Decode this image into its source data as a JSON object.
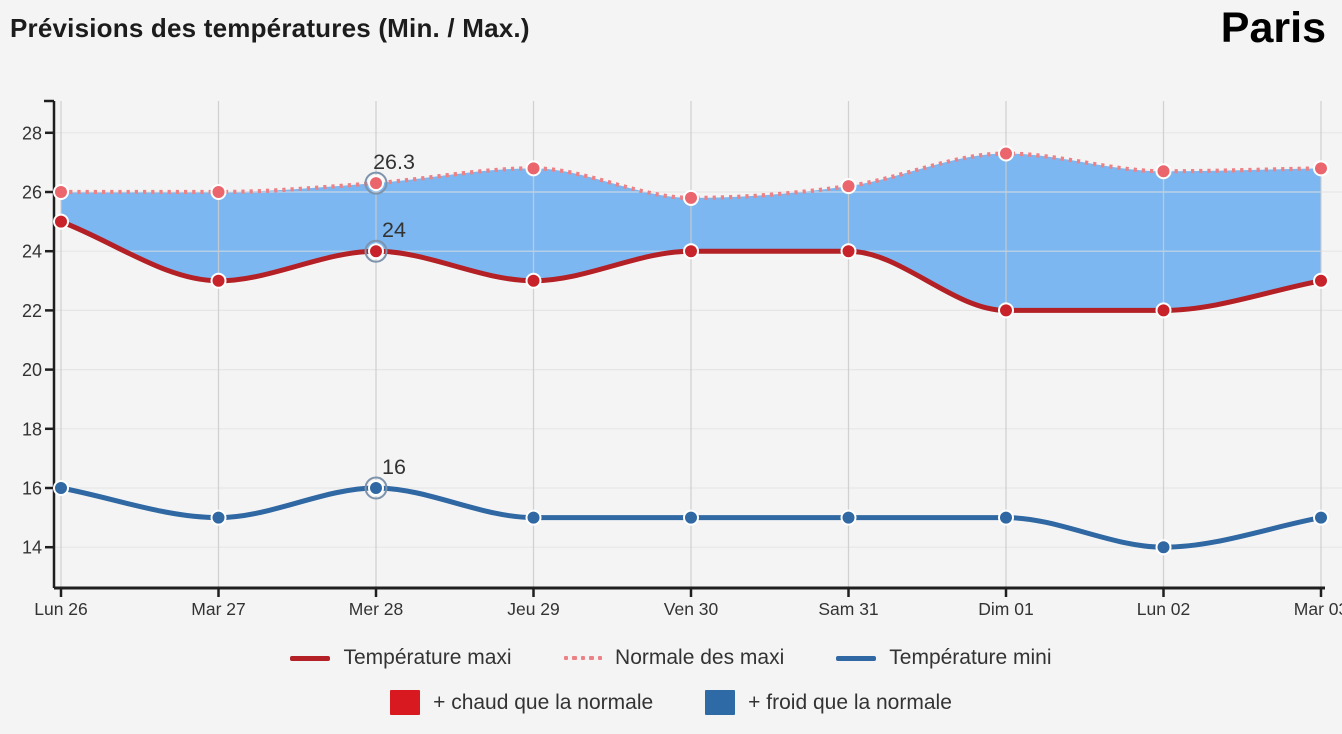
{
  "header": {
    "city": "Paris"
  },
  "chart_data": {
    "type": "line",
    "title": "Prévisions des températures (Min. / Max.)",
    "xlabel": "",
    "ylabel": "",
    "categories": [
      "Lun 26",
      "Mar 27",
      "Mer 28",
      "Jeu 29",
      "Ven 30",
      "Sam 31",
      "Dim 01",
      "Lun 02",
      "Mar 03"
    ],
    "series": [
      {
        "name": "Température maxi",
        "style": "solid",
        "color": "#b32025",
        "dot_color": "#c8232a",
        "values": [
          25,
          23,
          24,
          23,
          24,
          24,
          22,
          22,
          23
        ]
      },
      {
        "name": "Normale des maxi",
        "style": "dotted",
        "color": "#ec8186",
        "dot_color": "#eb666c",
        "values": [
          26,
          26,
          26.3,
          26.8,
          25.8,
          26.2,
          27.3,
          26.7,
          26.8
        ]
      },
      {
        "name": "Température mini",
        "style": "solid",
        "color": "#2f68a2",
        "dot_color": "#2f68a2",
        "values": [
          16,
          15,
          16,
          15,
          15,
          15,
          15,
          14,
          15
        ]
      }
    ],
    "annotations": [
      {
        "series": 1,
        "index": 2,
        "label": "26.3"
      },
      {
        "series": 0,
        "index": 2,
        "label": "24"
      },
      {
        "series": 2,
        "index": 2,
        "label": "16"
      }
    ],
    "highlight_index": 2,
    "yticks": [
      14,
      16,
      18,
      20,
      22,
      24,
      26,
      28
    ],
    "ylim": [
      12.6,
      29.1
    ],
    "grid": true,
    "legend_position": "bottom",
    "band": {
      "between": [
        "Normale des maxi",
        "Température maxi"
      ],
      "area_color": "rgba(90,165,240,0.78)"
    },
    "legend2": [
      {
        "label": "+ chaud que la normale",
        "color": "#d8191f"
      },
      {
        "label": "+ froid que la normale",
        "color": "#2e6ba6"
      }
    ]
  }
}
